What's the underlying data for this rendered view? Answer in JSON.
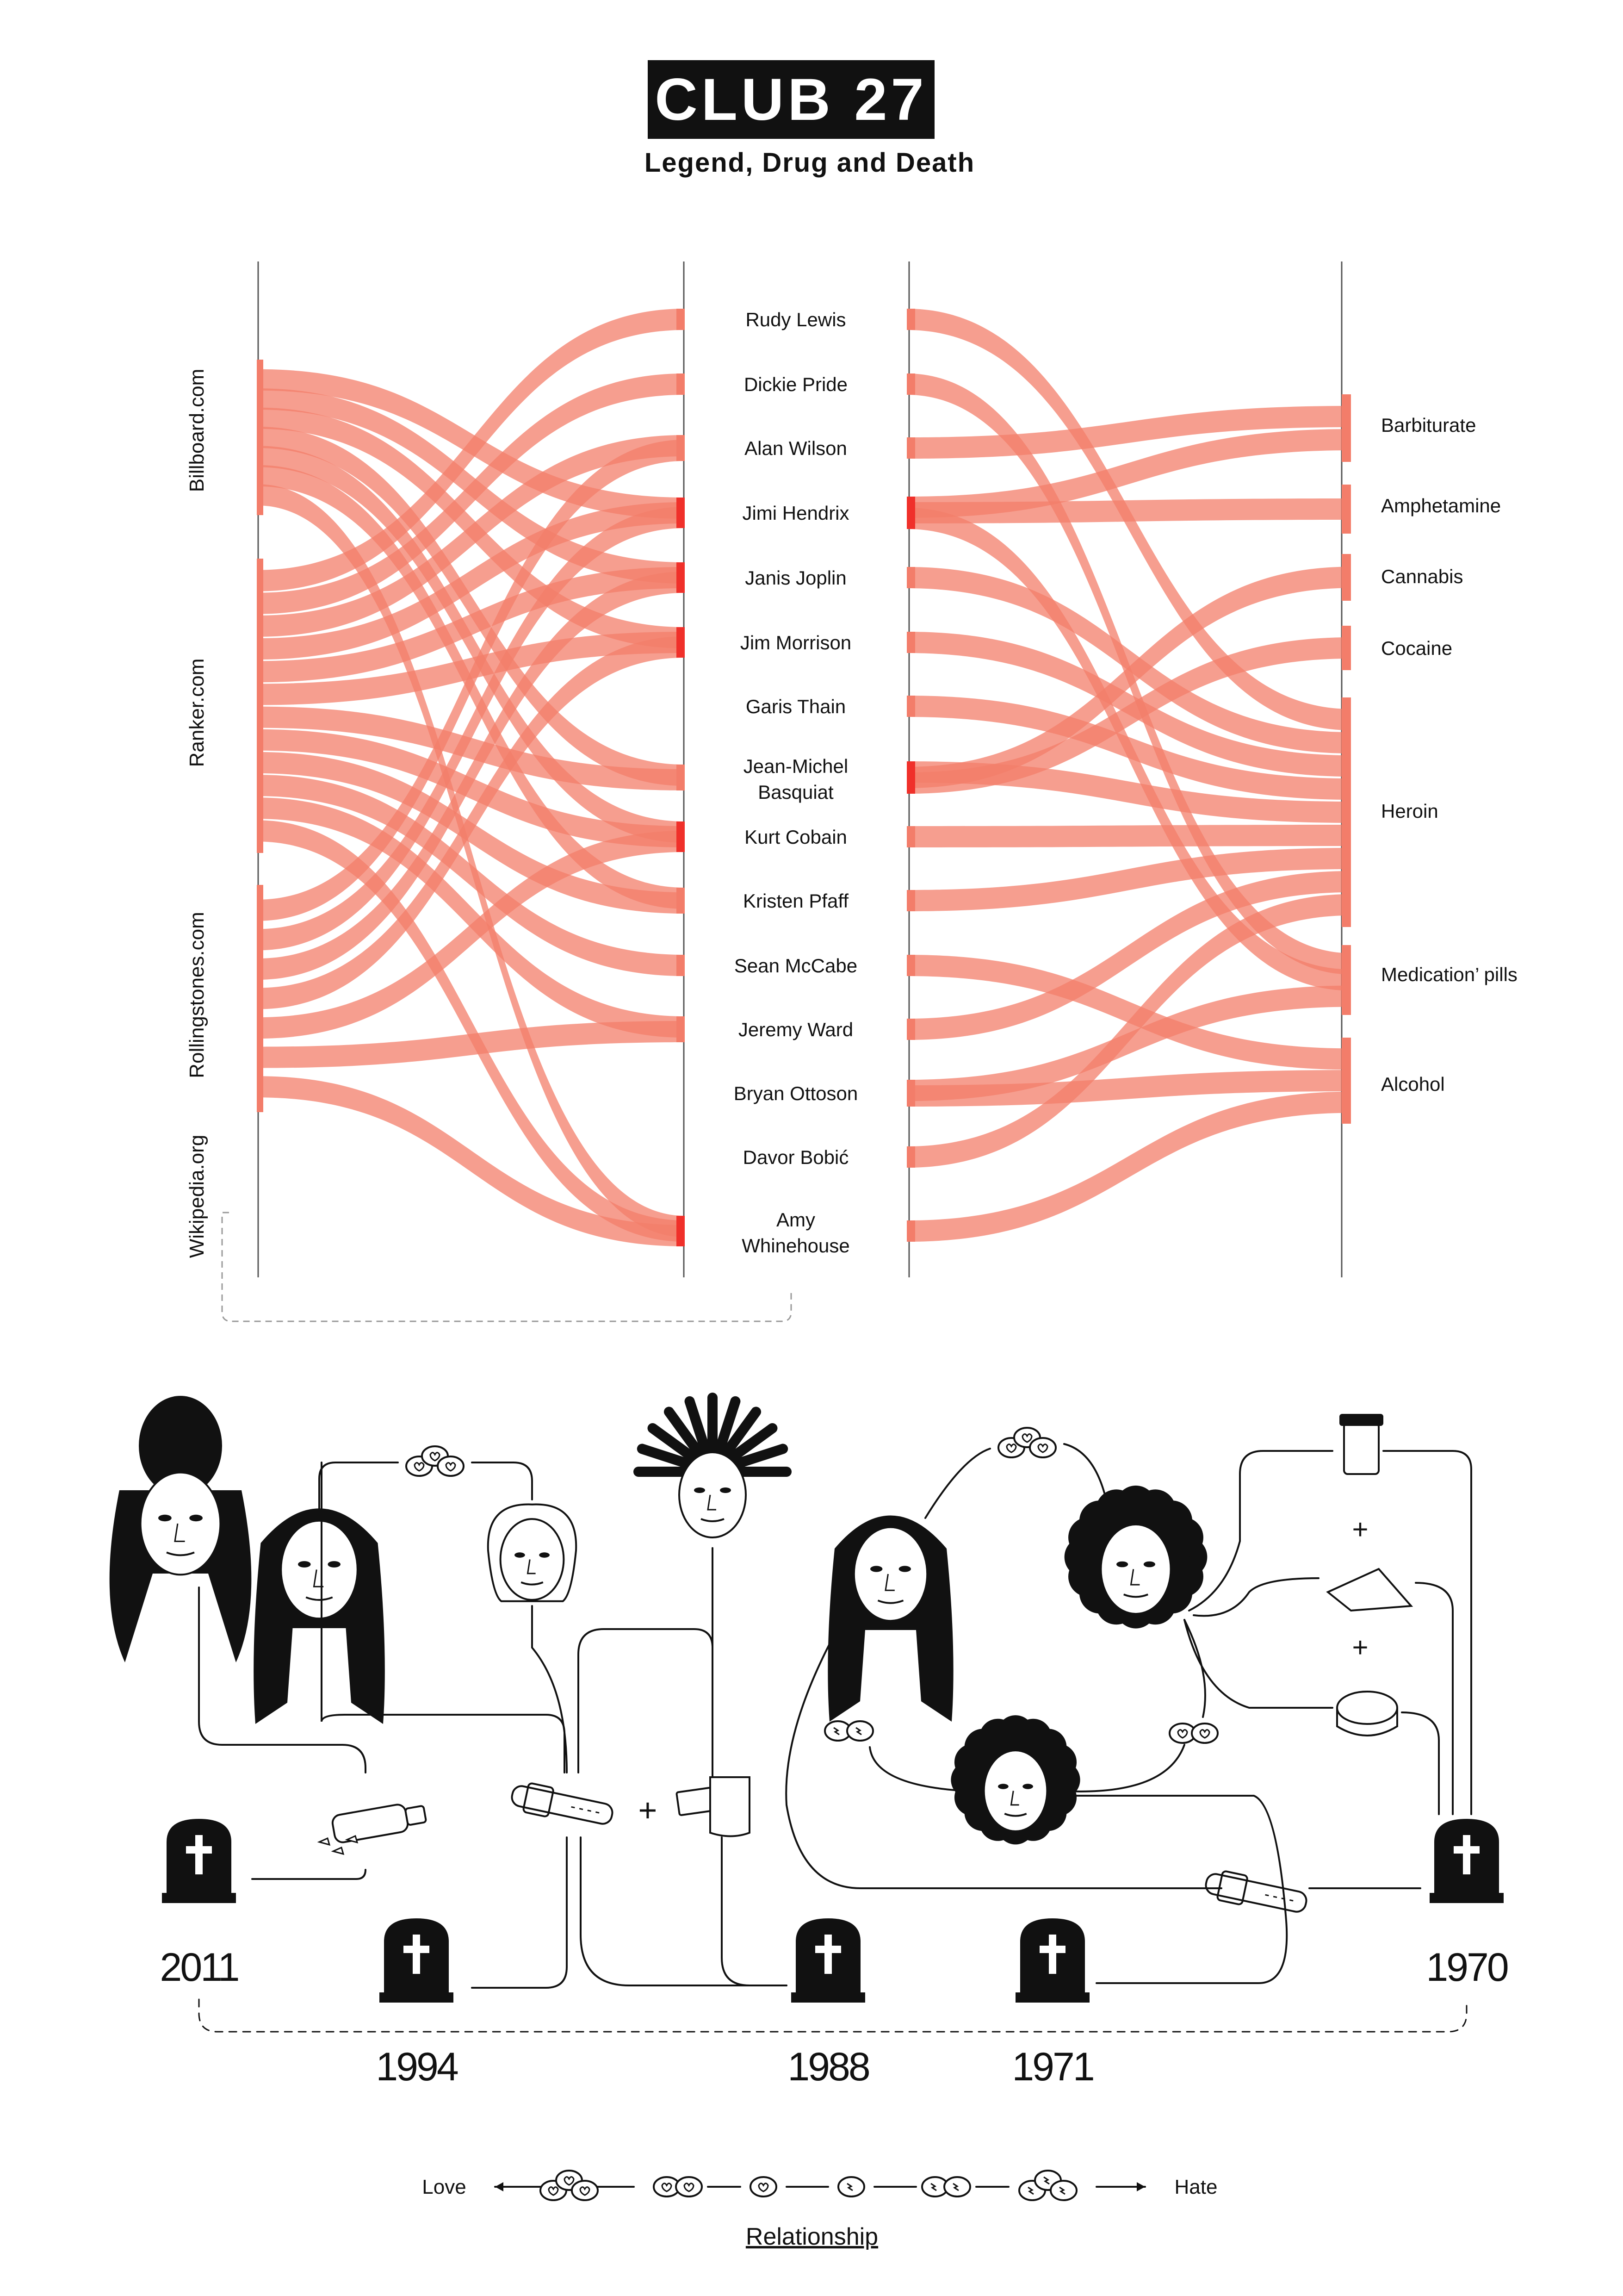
{
  "header": {
    "title": "CLUB 27",
    "subtitle": "Legend, Drug and Death"
  },
  "sources": [
    "Billboard.com",
    "Ranker.com",
    "Rollingstones.com",
    "Wikipedia.org"
  ],
  "artists": [
    "Rudy Lewis",
    "Dickie Pride",
    "Alan Wilson",
    "Jimi Hendrix",
    "Janis Joplin",
    "Jim Morrison",
    "Garis Thain",
    "Jean-Michel Basquiat",
    "Kurt Cobain",
    "Kristen Pfaff",
    "Sean McCabe",
    "Jeremy Ward",
    "Bryan Ottoson",
    "Davor Bobić",
    "Amy Whinehouse"
  ],
  "drugs": [
    "Barbiturate",
    "Amphetamine",
    "Cannabis",
    "Cocaine",
    "Heroin",
    "Medication’ pills",
    "Alcohol"
  ],
  "source_artist_links": [
    {
      "source": "Billboard.com",
      "artists": [
        "Jimi Hendrix",
        "Janis Joplin",
        "Jim Morrison",
        "Jean-Michel Basquiat",
        "Kurt Cobain",
        "Kristen Pfaff",
        "Amy Whinehouse"
      ]
    },
    {
      "source": "Ranker.com",
      "artists": [
        "Rudy Lewis",
        "Dickie Pride",
        "Alan Wilson",
        "Jimi Hendrix",
        "Janis Joplin",
        "Jim Morrison",
        "Jean-Michel Basquiat",
        "Kurt Cobain",
        "Kristen Pfaff",
        "Sean McCabe",
        "Jeremy Ward",
        "Amy Whinehouse"
      ]
    },
    {
      "source": "Rollingstones.com",
      "artists": [
        "Alan Wilson",
        "Jimi Hendrix",
        "Janis Joplin",
        "Jim Morrison",
        "Kurt Cobain",
        "Jeremy Ward",
        "Amy Whinehouse"
      ]
    }
  ],
  "artist_drug_links": [
    {
      "artist": "Rudy Lewis",
      "drugs": [
        "Heroin"
      ]
    },
    {
      "artist": "Dickie Pride",
      "drugs": [
        "Medication’ pills"
      ]
    },
    {
      "artist": "Alan Wilson",
      "drugs": [
        "Barbiturate"
      ]
    },
    {
      "artist": "Jimi Hendrix",
      "drugs": [
        "Barbiturate",
        "Amphetamine",
        "Medication’ pills"
      ]
    },
    {
      "artist": "Janis Joplin",
      "drugs": [
        "Heroin"
      ]
    },
    {
      "artist": "Jim Morrison",
      "drugs": [
        "Heroin"
      ]
    },
    {
      "artist": "Garis Thain",
      "drugs": [
        "Heroin"
      ]
    },
    {
      "artist": "Jean-Michel Basquiat",
      "drugs": [
        "Heroin",
        "Cannabis",
        "Cocaine"
      ]
    },
    {
      "artist": "Kurt Cobain",
      "drugs": [
        "Heroin"
      ]
    },
    {
      "artist": "Kristen Pfaff",
      "drugs": [
        "Heroin"
      ]
    },
    {
      "artist": "Sean McCabe",
      "drugs": [
        "Alcohol"
      ]
    },
    {
      "artist": "Jeremy Ward",
      "drugs": [
        "Heroin"
      ]
    },
    {
      "artist": "Bryan Ottoson",
      "drugs": [
        "Medication’ pills",
        "Alcohol"
      ]
    },
    {
      "artist": "Davor Bobić",
      "drugs": [
        "Heroin"
      ]
    },
    {
      "artist": "Amy Whinehouse",
      "drugs": [
        "Alcohol"
      ]
    }
  ],
  "timeline": {
    "years": [
      "2011",
      "1994",
      "1988",
      "1971",
      "1970"
    ]
  },
  "relationship_legend": {
    "left": "Love",
    "right": "Hate",
    "title": "Relationship"
  },
  "colors": {
    "flow": "#f37d6a",
    "flow_dark": "#f0302a",
    "ink": "#111111",
    "axis": "#555555"
  },
  "icons": [
    "face-icon",
    "pill-icon",
    "belt-icon",
    "razor-icon",
    "bag-icon",
    "pill-bottle-icon",
    "grinder-icon",
    "bottle-icon",
    "tombstone-icon",
    "cross-icon"
  ]
}
